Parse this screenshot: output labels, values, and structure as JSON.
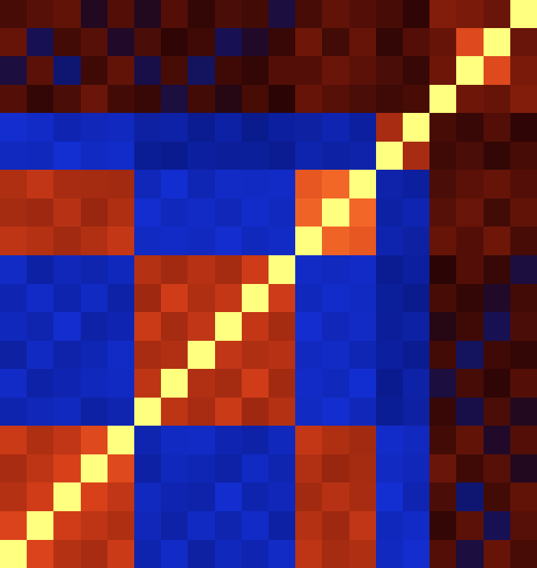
{
  "chart_data": {
    "type": "heatmap",
    "tick_labels": false,
    "color_range": [
      -1,
      1
    ],
    "cells": [
      [
        1.0,
        0.42,
        0.31,
        0.28,
        0.36,
        -0.22,
        -0.31,
        -0.18,
        -0.27,
        -0.24,
        -0.3,
        0.33,
        0.27,
        0.29,
        -0.28,
        -0.33,
        0.08,
        -0.04,
        0.12,
        0.06
      ],
      [
        0.42,
        1.0,
        0.38,
        0.33,
        0.29,
        -0.26,
        -0.2,
        -0.29,
        -0.23,
        -0.31,
        -0.19,
        0.31,
        0.25,
        0.34,
        -0.27,
        -0.31,
        0.02,
        0.1,
        -0.06,
        0.09
      ],
      [
        0.31,
        0.38,
        1.0,
        0.4,
        0.34,
        -0.28,
        -0.24,
        -0.21,
        -0.33,
        -0.22,
        -0.26,
        0.26,
        0.32,
        0.28,
        -0.35,
        -0.24,
        0.07,
        -0.08,
        0.05,
        0.11
      ],
      [
        0.28,
        0.33,
        0.4,
        1.0,
        0.45,
        -0.19,
        -0.27,
        -0.25,
        -0.2,
        -0.29,
        -0.23,
        0.3,
        0.24,
        0.27,
        -0.29,
        -0.26,
        0.13,
        0.04,
        0.09,
        -0.02
      ],
      [
        0.36,
        0.29,
        0.34,
        0.45,
        1.0,
        -0.23,
        -0.29,
        -0.3,
        -0.24,
        -0.2,
        -0.27,
        0.35,
        0.29,
        0.26,
        -0.32,
        -0.28,
        0.05,
        0.11,
        -0.03,
        0.08
      ],
      [
        -0.22,
        -0.26,
        -0.28,
        -0.19,
        -0.23,
        1.0,
        0.33,
        0.28,
        0.36,
        0.25,
        0.31,
        -0.29,
        -0.33,
        -0.26,
        -0.14,
        -0.18,
        0.03,
        -0.05,
        0.07,
        -0.02
      ],
      [
        -0.31,
        -0.2,
        -0.24,
        -0.27,
        -0.29,
        0.33,
        1.0,
        0.3,
        0.27,
        0.38,
        0.26,
        -0.31,
        -0.27,
        -0.34,
        -0.12,
        -0.2,
        -0.04,
        0.06,
        0.01,
        0.08
      ],
      [
        -0.18,
        -0.29,
        -0.21,
        -0.25,
        -0.3,
        0.28,
        0.3,
        1.0,
        0.34,
        0.29,
        0.32,
        -0.28,
        -0.3,
        -0.25,
        -0.17,
        -0.13,
        0.05,
        -0.07,
        0.04,
        0.02
      ],
      [
        -0.27,
        -0.23,
        -0.33,
        -0.2,
        -0.24,
        0.36,
        0.27,
        0.34,
        1.0,
        0.35,
        0.27,
        -0.33,
        -0.26,
        -0.3,
        -0.15,
        -0.19,
        -0.01,
        0.04,
        -0.06,
        0.07
      ],
      [
        -0.24,
        -0.31,
        -0.22,
        -0.29,
        -0.2,
        0.25,
        0.38,
        0.29,
        0.35,
        1.0,
        0.37,
        -0.27,
        -0.32,
        -0.29,
        -0.16,
        -0.11,
        0.06,
        0.02,
        -0.03,
        0.05
      ],
      [
        -0.3,
        -0.19,
        -0.26,
        -0.23,
        -0.27,
        0.31,
        0.26,
        0.32,
        0.27,
        0.37,
        1.0,
        -0.3,
        -0.28,
        -0.31,
        -0.13,
        -0.17,
        0.0,
        0.08,
        0.03,
        -0.04
      ],
      [
        0.33,
        0.31,
        0.26,
        0.3,
        0.35,
        -0.29,
        -0.31,
        -0.28,
        -0.33,
        -0.27,
        -0.3,
        1.0,
        0.58,
        0.52,
        -0.22,
        -0.18,
        0.12,
        0.08,
        0.14,
        0.06
      ],
      [
        0.27,
        0.25,
        0.32,
        0.24,
        0.29,
        -0.33,
        -0.27,
        -0.3,
        -0.26,
        -0.32,
        -0.28,
        0.58,
        1.0,
        0.6,
        -0.19,
        -0.24,
        0.09,
        0.13,
        0.05,
        0.11
      ],
      [
        0.29,
        0.34,
        0.28,
        0.27,
        0.26,
        -0.26,
        -0.34,
        -0.25,
        -0.3,
        -0.29,
        -0.31,
        0.52,
        0.6,
        1.0,
        -0.21,
        -0.17,
        0.07,
        0.1,
        0.12,
        0.08
      ],
      [
        -0.28,
        -0.27,
        -0.35,
        -0.29,
        -0.32,
        -0.14,
        -0.12,
        -0.17,
        -0.15,
        -0.16,
        -0.13,
        -0.22,
        -0.19,
        -0.21,
        1.0,
        0.28,
        0.04,
        0.07,
        0.02,
        0.06
      ],
      [
        -0.33,
        -0.31,
        -0.24,
        -0.26,
        -0.28,
        -0.18,
        -0.2,
        -0.13,
        -0.19,
        -0.11,
        -0.17,
        -0.18,
        -0.24,
        -0.17,
        0.28,
        1.0,
        0.06,
        0.03,
        0.08,
        0.01
      ],
      [
        0.08,
        0.02,
        0.07,
        0.13,
        0.05,
        0.03,
        -0.04,
        0.05,
        -0.01,
        0.06,
        0.0,
        0.12,
        0.09,
        0.07,
        0.04,
        0.06,
        1.0,
        0.14,
        0.12,
        0.18
      ],
      [
        -0.04,
        0.1,
        -0.08,
        0.04,
        0.11,
        -0.05,
        0.06,
        -0.07,
        0.04,
        0.02,
        0.08,
        0.08,
        0.13,
        0.1,
        0.07,
        0.03,
        0.14,
        1.0,
        0.45,
        0.16
      ],
      [
        0.12,
        -0.06,
        0.05,
        0.09,
        -0.03,
        0.07,
        0.01,
        0.04,
        -0.06,
        -0.03,
        0.03,
        0.14,
        0.05,
        0.12,
        0.02,
        0.08,
        0.12,
        0.45,
        1.0,
        0.13
      ],
      [
        0.06,
        0.09,
        0.11,
        -0.02,
        0.08,
        -0.02,
        0.08,
        0.02,
        0.07,
        0.05,
        -0.04,
        0.06,
        0.11,
        0.08,
        0.06,
        0.01,
        0.18,
        0.16,
        0.13,
        1.0
      ]
    ]
  }
}
